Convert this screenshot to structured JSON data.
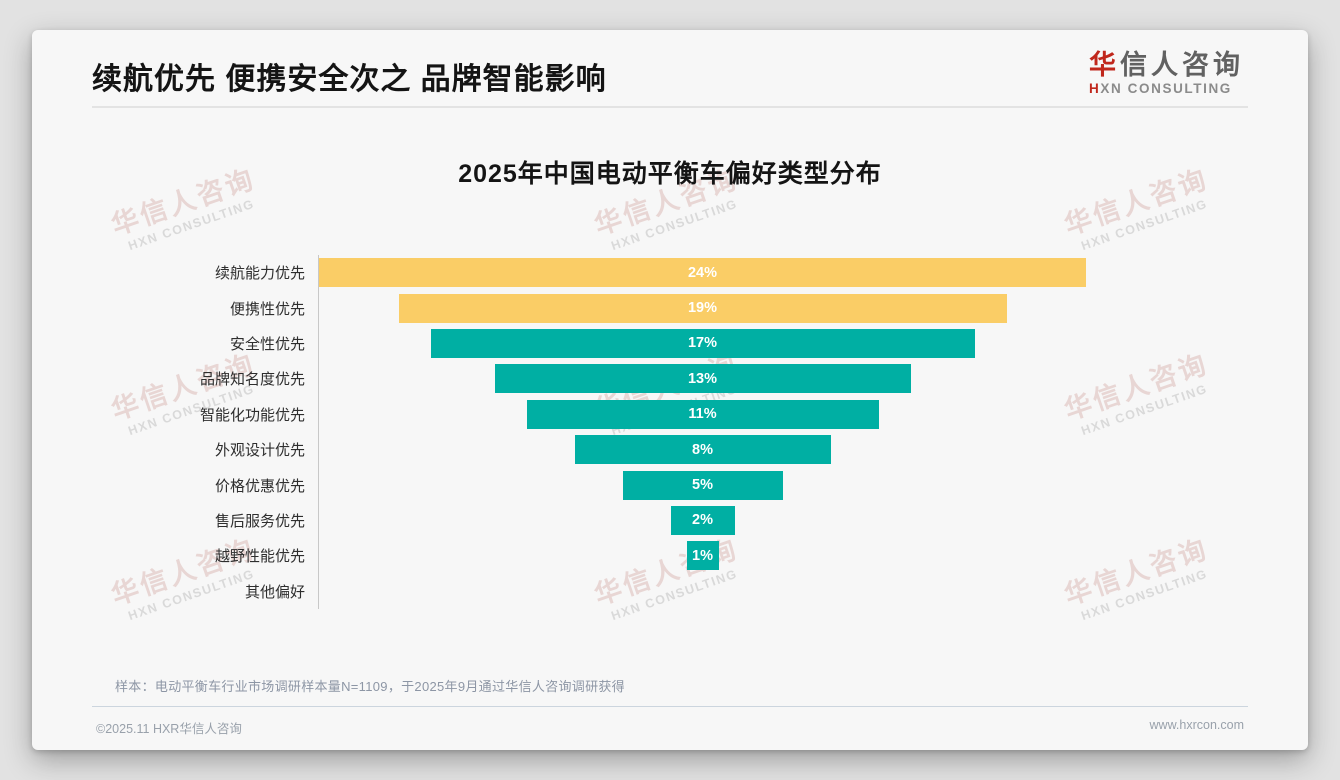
{
  "page": {
    "header": {
      "title": "续航优先 便携安全次之 品牌智能影响",
      "logo": {
        "cn_first": "华",
        "cn_rest": "信人咨询",
        "en_first": "H",
        "en_rest": "XN CONSULTING"
      }
    },
    "watermark": {
      "line1": "华信人咨询",
      "line2": "HXN CONSULTING"
    },
    "footnote": "样本：电动平衡车行业市场调研样本量N=1109，于2025年9月通过华信人咨询调研获得",
    "footer": {
      "left": "©2025.11 HXR华信人咨询",
      "right": "www.hxrcon.com"
    }
  },
  "chart_data": {
    "type": "bar",
    "subtype": "centered-funnel-horizontal",
    "title": "2025年中国电动平衡车偏好类型分布",
    "categories": [
      "续航能力优先",
      "便携性优先",
      "安全性优先",
      "品牌知名度优先",
      "智能化功能优先",
      "外观设计优先",
      "价格优惠优先",
      "售后服务优先",
      "越野性能优先",
      "其他偏好"
    ],
    "values": [
      24,
      19,
      17,
      13,
      11,
      8,
      5,
      2,
      1,
      0
    ],
    "value_labels": [
      "24%",
      "19%",
      "17%",
      "13%",
      "11%",
      "8%",
      "5%",
      "2%",
      "1%",
      ""
    ],
    "bar_colors": [
      "#FACD66",
      "#FACD66",
      "#00AFA3",
      "#00AFA3",
      "#00AFA3",
      "#00AFA3",
      "#00AFA3",
      "#00AFA3",
      "#00AFA3",
      "#00AFA3"
    ],
    "accent_colors": {
      "highlight": "#FACD66",
      "default": "#00AFA3"
    },
    "value_label_color": "#ffffff",
    "xlim": [
      0,
      24
    ],
    "axis_line": true,
    "grid": false,
    "legend": false
  }
}
